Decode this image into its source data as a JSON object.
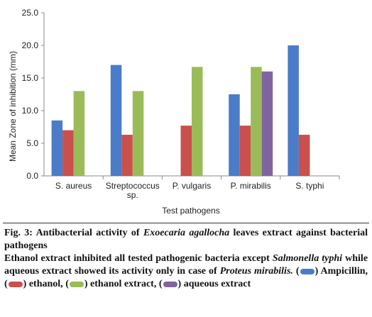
{
  "chart_data": {
    "type": "bar",
    "categories": [
      "S. aureus",
      "Streptococcus sp.",
      "P. vulgaris",
      "P. mirabilis",
      "S. typhi"
    ],
    "series": [
      {
        "name": "Ampicillin",
        "color": "#4a7cc9",
        "values": [
          8.5,
          17.0,
          0,
          12.5,
          20.0
        ]
      },
      {
        "name": "ethanol",
        "color": "#c9504c",
        "values": [
          7.0,
          6.3,
          7.7,
          7.7,
          6.3
        ]
      },
      {
        "name": "ethanol extract",
        "color": "#9bbb59",
        "values": [
          13.0,
          13.0,
          16.7,
          16.7,
          0
        ]
      },
      {
        "name": "aqueous extract",
        "color": "#8064a2",
        "values": [
          0,
          0,
          0,
          16.0,
          0
        ]
      }
    ],
    "ylim": [
      0,
      25
    ],
    "yticks": [
      "0.0",
      "5.0",
      "10.0",
      "15.0",
      "20.0",
      "25.0"
    ],
    "ylabel": "Mean Zone of inhibition (mm)",
    "xlabel": "Test pathogens",
    "grid": false
  },
  "caption": {
    "fig_label": "Fig. 3:",
    "title_pre": "Antibacterial activity of",
    "title_species": "Exoecaria agallocha",
    "title_post": "leaves extract against bacterial pathogens",
    "desc_1": "Ethanol extract inhibited all tested pathogenic bacteria except",
    "desc_species1": "Salmonella typhi",
    "desc_2": "while aqueous extract showed its activity only in case of",
    "desc_species2": "Proteus mirabilis.",
    "legend_1": "Ampicillin,",
    "legend_2": "ethanol,",
    "legend_3": "ethanol extract,",
    "legend_4": "aqueous extract"
  }
}
